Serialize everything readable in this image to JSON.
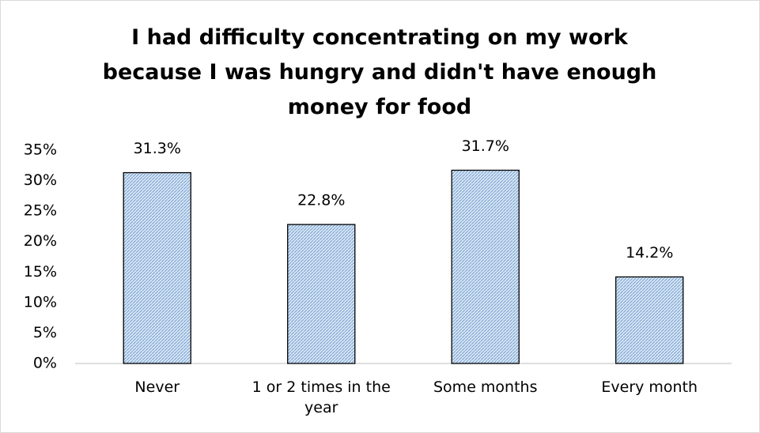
{
  "chart_data": {
    "type": "bar",
    "title": "I had difficulty concentrating on my work because I was hungry and didn't have enough money for food",
    "categories": [
      "Never",
      "1 or 2 times in the year",
      "Some months",
      "Every month"
    ],
    "values": [
      31.3,
      22.8,
      31.7,
      14.2
    ],
    "value_labels": [
      "31.3%",
      "22.8%",
      "31.7%",
      "14.2%"
    ],
    "color": "#a9c6e6",
    "ylim": [
      0,
      35
    ],
    "yticks": [
      {
        "value": 0,
        "label": "0%"
      },
      {
        "value": 5,
        "label": "5%"
      },
      {
        "value": 10,
        "label": "10%"
      },
      {
        "value": 15,
        "label": "15%"
      },
      {
        "value": 20,
        "label": "20%"
      },
      {
        "value": 25,
        "label": "25%"
      },
      {
        "value": 30,
        "label": "30%"
      },
      {
        "value": 35,
        "label": "35%"
      }
    ],
    "grid": false
  }
}
